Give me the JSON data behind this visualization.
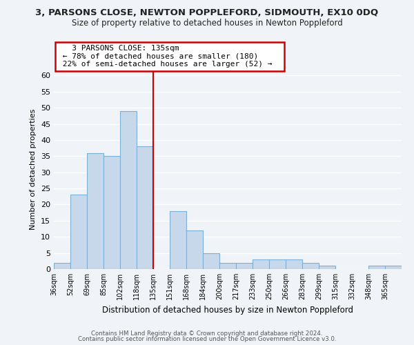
{
  "title": "3, PARSONS CLOSE, NEWTON POPPLEFORD, SIDMOUTH, EX10 0DQ",
  "subtitle": "Size of property relative to detached houses in Newton Poppleford",
  "xlabel": "Distribution of detached houses by size in Newton Poppleford",
  "ylabel": "Number of detached properties",
  "bin_labels": [
    "36sqm",
    "52sqm",
    "69sqm",
    "85sqm",
    "102sqm",
    "118sqm",
    "135sqm",
    "151sqm",
    "168sqm",
    "184sqm",
    "200sqm",
    "217sqm",
    "233sqm",
    "250sqm",
    "266sqm",
    "283sqm",
    "299sqm",
    "315sqm",
    "332sqm",
    "348sqm",
    "365sqm"
  ],
  "bar_heights": [
    2,
    23,
    36,
    35,
    49,
    38,
    0,
    18,
    12,
    5,
    2,
    2,
    3,
    3,
    3,
    2,
    1,
    0,
    0,
    1,
    1
  ],
  "bar_color": "#c8d8eb",
  "bar_edge_color": "#7bafd4",
  "highlight_color": "#cc0000",
  "ylim": [
    0,
    62
  ],
  "yticks": [
    0,
    5,
    10,
    15,
    20,
    25,
    30,
    35,
    40,
    45,
    50,
    55,
    60
  ],
  "annotation_title": "3 PARSONS CLOSE: 135sqm",
  "annotation_line1": "← 78% of detached houses are smaller (180)",
  "annotation_line2": "22% of semi-detached houses are larger (52) →",
  "annotation_box_color": "#ffffff",
  "annotation_box_edge": "#cc0000",
  "footer1": "Contains HM Land Registry data © Crown copyright and database right 2024.",
  "footer2": "Contains public sector information licensed under the Open Government Licence v3.0.",
  "background_color": "#f0f4f8",
  "grid_color": "#ffffff"
}
